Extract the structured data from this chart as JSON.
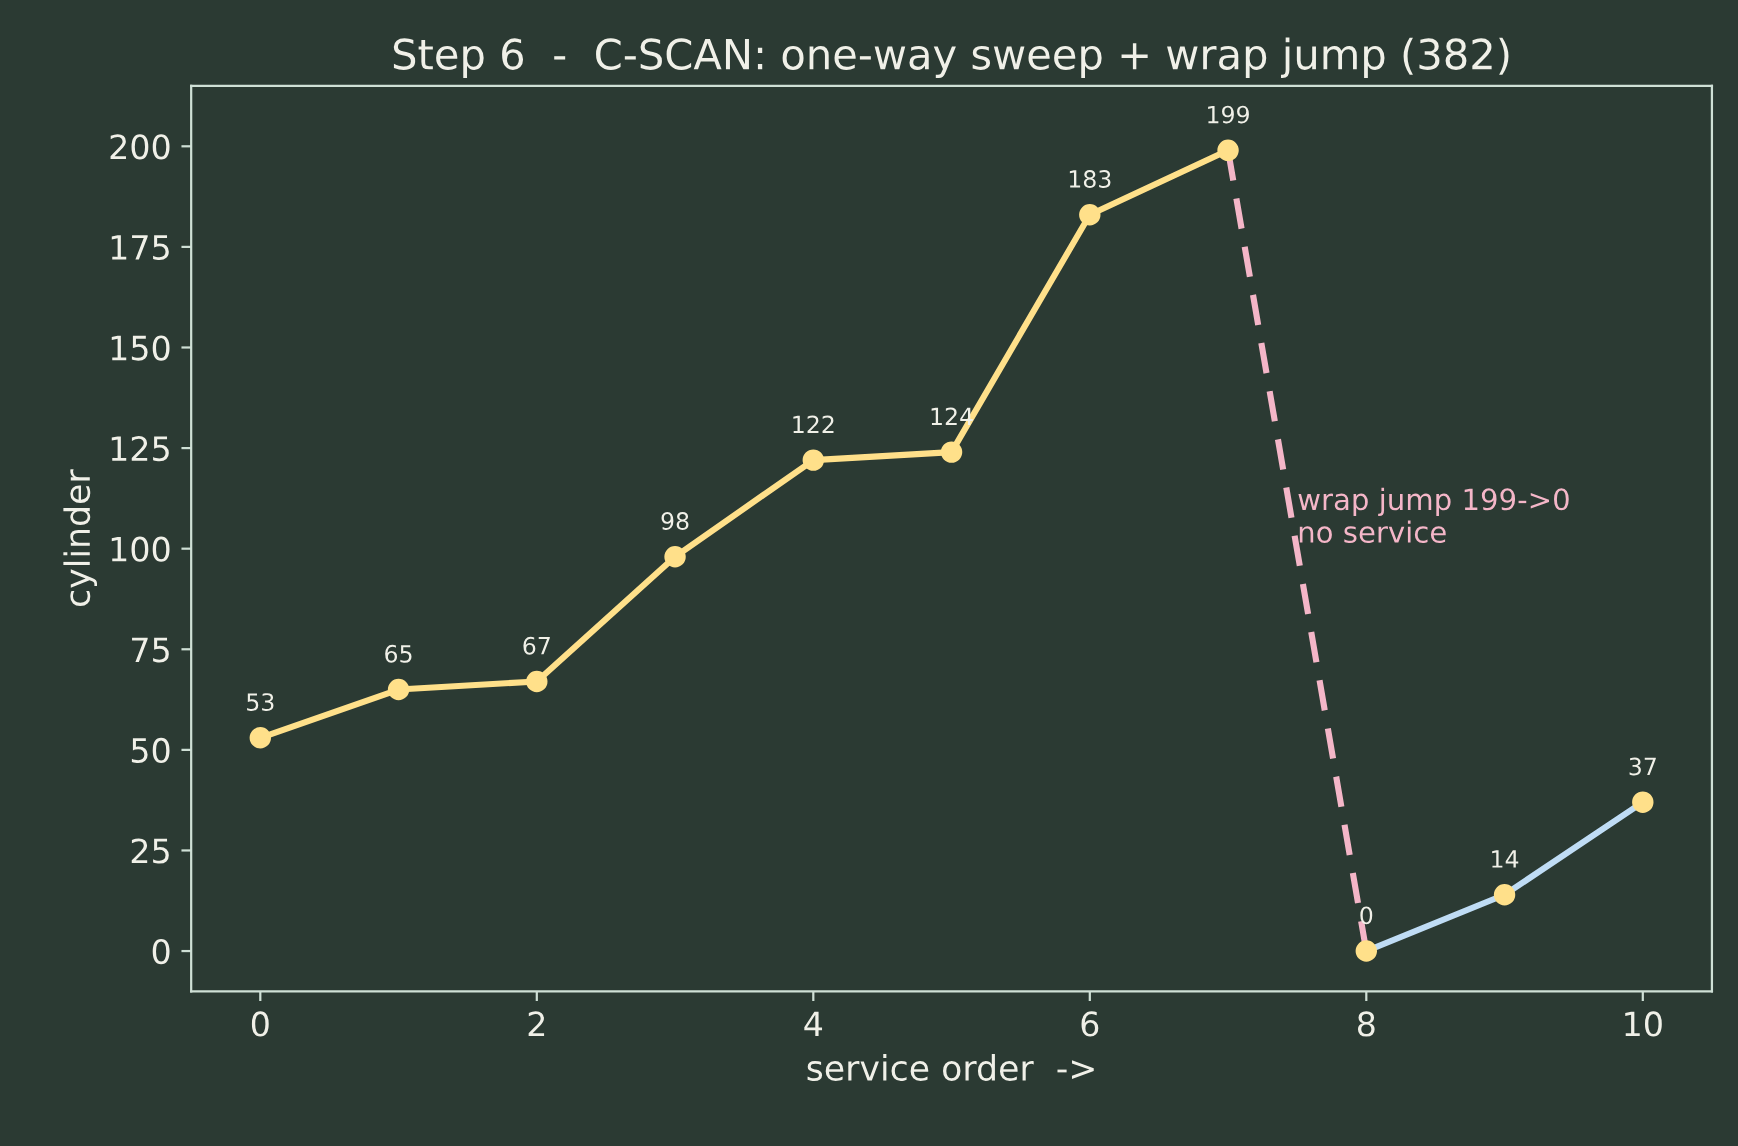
{
  "chart_data": {
    "type": "line",
    "title": "Step 6  -  C-SCAN: one-way sweep + wrap jump (382)",
    "xlabel": "service order  ->",
    "ylabel": "cylinder",
    "xlim": [
      -0.5,
      10.5
    ],
    "xticks": [
      0,
      2,
      4,
      6,
      8,
      10
    ],
    "ylim": [
      -10,
      215
    ],
    "yticks": [
      0,
      25,
      50,
      75,
      100,
      125,
      150,
      175,
      200
    ],
    "grid": false,
    "legend": false,
    "series": [
      {
        "color": "#ffe08a",
        "x": [
          0,
          1,
          2,
          3,
          4,
          5,
          6,
          7
        ],
        "values": [
          53,
          65,
          67,
          98,
          122,
          124,
          183,
          199
        ],
        "line_style": "solid"
      },
      {
        "color": "#f4b6c8",
        "x": [
          7,
          8
        ],
        "values": [
          199,
          0
        ],
        "line_style": "dashed"
      },
      {
        "color": "#bfdcf5",
        "x": [
          8,
          9,
          10
        ],
        "values": [
          0,
          14,
          37
        ],
        "line_style": "solid"
      },
      {
        "type": "scatter",
        "color": "#ffe08a",
        "x": [
          0,
          1,
          2,
          3,
          4,
          5,
          6,
          7,
          8,
          9,
          10
        ],
        "values": [
          53,
          65,
          67,
          98,
          122,
          124,
          183,
          199,
          0,
          14,
          37
        ],
        "marker": "circle",
        "data_labels": true
      }
    ],
    "annotations": [
      {
        "text": "wrap jump 199->0\nno service",
        "x": 7.5,
        "y": 100
      }
    ]
  }
}
